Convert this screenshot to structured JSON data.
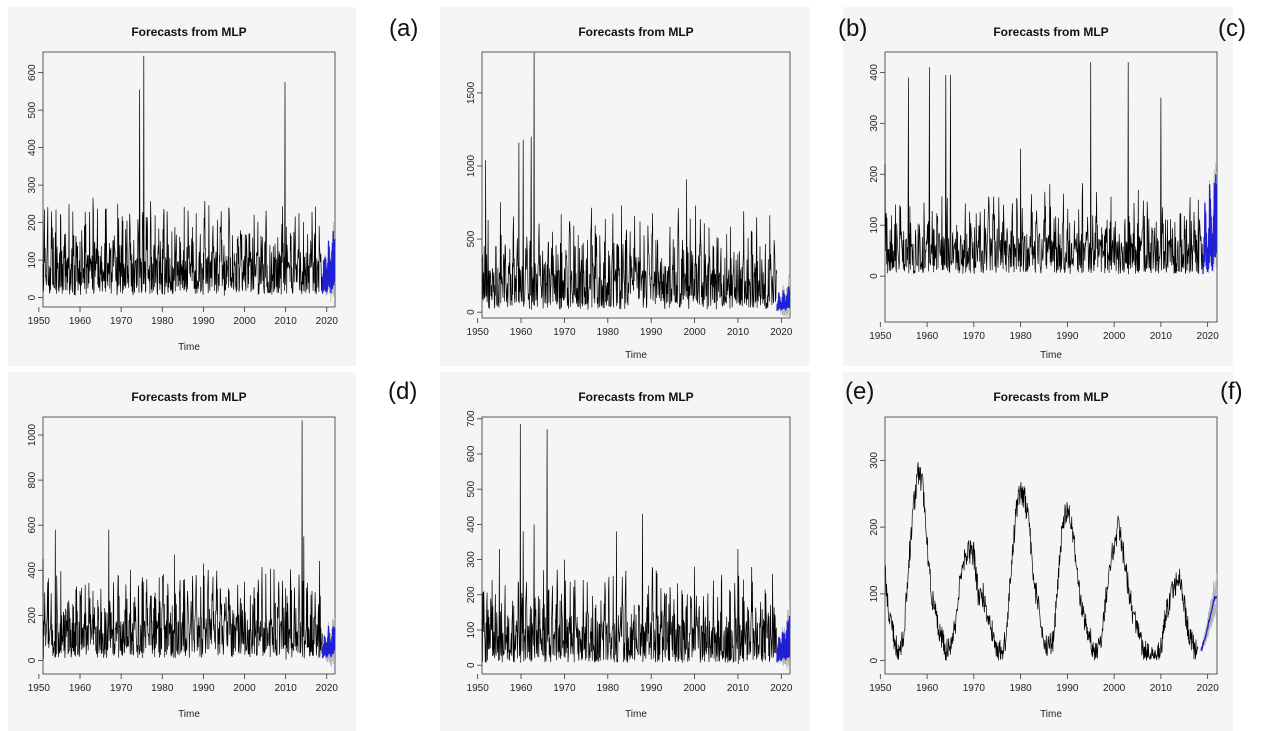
{
  "chart_data": [
    {
      "id": "a",
      "type": "line",
      "title": "Forecasts from MLP",
      "xlabel": "Time",
      "ylabel": "",
      "xlim": [
        1951,
        2022
      ],
      "ylim": [
        -25,
        655
      ],
      "yticks": [
        0,
        100,
        200,
        300,
        400,
        500,
        600
      ],
      "xticks": [
        1950,
        1960,
        1970,
        1980,
        1990,
        2000,
        2010,
        2020
      ],
      "history_range": [
        1951,
        2018.9
      ],
      "forecast_range": [
        2019,
        2021.9
      ],
      "series": [
        {
          "role": "history",
          "x": [
            1951,
            1955,
            1960,
            1965,
            1970,
            1974.5,
            1975.5,
            1980,
            1985,
            1990,
            1995,
            2000,
            2005,
            2009.8,
            2015,
            2018
          ],
          "y": [
            90,
            120,
            150,
            110,
            140,
            555,
            645,
            130,
            100,
            120,
            140,
            110,
            150,
            575,
            120,
            90
          ]
        },
        {
          "role": "forecast",
          "x": [
            2019,
            2019.5,
            2020,
            2020.5,
            2021,
            2021.5
          ],
          "y": [
            60,
            140,
            70,
            170,
            80,
            190
          ]
        }
      ]
    },
    {
      "id": "b",
      "type": "line",
      "title": "Forecasts from MLP",
      "xlabel": "Time",
      "ylabel": "",
      "xlim": [
        1951,
        2022
      ],
      "ylim": [
        -40,
        1780
      ],
      "yticks": [
        0,
        500,
        1000,
        1500
      ],
      "xticks": [
        1950,
        1960,
        1970,
        1980,
        1990,
        2000,
        2010,
        2020
      ],
      "history_range": [
        1951,
        2018.9
      ],
      "forecast_range": [
        2019,
        2021.9
      ],
      "series": [
        {
          "role": "history",
          "x": [
            1951.8,
            1959.5,
            1960.5,
            1962.3,
            1963,
            1970,
            1980,
            1990,
            1998.2,
            1999,
            2010,
            2018
          ],
          "y": [
            1040,
            1160,
            1180,
            1200,
            1775,
            300,
            200,
            250,
            910,
            640,
            400,
            200
          ]
        },
        {
          "role": "forecast",
          "x": [
            2019,
            2019.5,
            2020,
            2020.5,
            2021,
            2021.5
          ],
          "y": [
            50,
            150,
            60,
            170,
            70,
            180
          ]
        }
      ]
    },
    {
      "id": "c",
      "type": "line",
      "title": "Forecasts from MLP",
      "xlabel": "Time",
      "ylabel": "",
      "xlim": [
        1951,
        2022
      ],
      "ylim": [
        -90,
        440
      ],
      "yticks": [
        0,
        100,
        200,
        300,
        400
      ],
      "xticks": [
        1950,
        1960,
        1970,
        1980,
        1990,
        2000,
        2010,
        2020
      ],
      "history_range": [
        1951,
        2018.9
      ],
      "forecast_range": [
        2019,
        2021.9
      ],
      "series": [
        {
          "role": "history",
          "x": [
            1951,
            1956,
            1960.5,
            1964,
            1965,
            1980,
            1995,
            2003,
            2010,
            2018
          ],
          "y": [
            220,
            390,
            410,
            395,
            395,
            250,
            420,
            420,
            350,
            150
          ]
        },
        {
          "role": "forecast",
          "x": [
            2019,
            2019.5,
            2020,
            2020.5,
            2021,
            2021.5
          ],
          "y": [
            20,
            180,
            40,
            210,
            60,
            230
          ]
        }
      ]
    },
    {
      "id": "d",
      "type": "line",
      "title": "Forecasts from MLP",
      "xlabel": "Time",
      "ylabel": "",
      "xlim": [
        1951,
        2022
      ],
      "ylim": [
        -60,
        1080
      ],
      "yticks": [
        0,
        200,
        400,
        600,
        800,
        1000
      ],
      "xticks": [
        1950,
        1960,
        1970,
        1980,
        1990,
        2000,
        2010,
        2020
      ],
      "history_range": [
        1951,
        2018.9
      ],
      "forecast_range": [
        2019,
        2021.9
      ],
      "series": [
        {
          "role": "history",
          "x": [
            1951,
            1954,
            1967,
            1983,
            1990,
            2000,
            2010,
            2014,
            2014.4,
            2018
          ],
          "y": [
            450,
            580,
            580,
            470,
            430,
            350,
            320,
            1065,
            550,
            250
          ]
        },
        {
          "role": "forecast",
          "x": [
            2019,
            2019.5,
            2020,
            2020.5,
            2021,
            2021.5
          ],
          "y": [
            50,
            140,
            70,
            170,
            80,
            190
          ]
        }
      ]
    },
    {
      "id": "e",
      "type": "line",
      "title": "Forecasts from MLP",
      "xlabel": "Time",
      "ylabel": "",
      "xlim": [
        1951,
        2022
      ],
      "ylim": [
        -25,
        705
      ],
      "yticks": [
        0,
        100,
        200,
        300,
        400,
        500,
        600,
        700
      ],
      "xticks": [
        1950,
        1960,
        1970,
        1980,
        1990,
        2000,
        2010,
        2020
      ],
      "history_range": [
        1951,
        2018.9
      ],
      "forecast_range": [
        2019,
        2021.9
      ],
      "series": [
        {
          "role": "history",
          "x": [
            1951,
            1955,
            1959.8,
            1960.5,
            1963,
            1966,
            1970,
            1982,
            1988,
            2000,
            2010,
            2018
          ],
          "y": [
            130,
            330,
            685,
            380,
            400,
            670,
            300,
            380,
            430,
            280,
            330,
            260
          ]
        },
        {
          "role": "forecast",
          "x": [
            2019,
            2019.5,
            2020,
            2020.5,
            2021,
            2021.5
          ],
          "y": [
            40,
            110,
            60,
            130,
            70,
            140
          ]
        }
      ]
    },
    {
      "id": "f",
      "type": "line",
      "title": "Forecasts from MLP",
      "xlabel": "Time",
      "ylabel": "",
      "xlim": [
        1951,
        2022
      ],
      "ylim": [
        -20,
        365
      ],
      "yticks": [
        0,
        100,
        200,
        300
      ],
      "xticks": [
        1950,
        1960,
        1970,
        1980,
        1990,
        2000,
        2010,
        2020
      ],
      "history_range": [
        1951,
        2018
      ],
      "forecast_range": [
        2018.6,
        2021.9
      ],
      "series": [
        {
          "role": "history",
          "x": [
            1951,
            1952,
            1953,
            1954,
            1955,
            1956,
            1957,
            1958,
            1959,
            1960,
            1961,
            1962,
            1963,
            1964,
            1965,
            1966,
            1967,
            1968,
            1969,
            1970,
            1971,
            1972,
            1973,
            1974,
            1975,
            1976,
            1977,
            1978,
            1979,
            1980,
            1981,
            1982,
            1983,
            1984,
            1985,
            1986,
            1987,
            1988,
            1989,
            1990,
            1991,
            1992,
            1993,
            1994,
            1995,
            1996,
            1997,
            1998,
            1999,
            2000,
            2001,
            2002,
            2003,
            2004,
            2005,
            2006,
            2007,
            2008,
            2009,
            2010,
            2011,
            2012,
            2013,
            2014,
            2015,
            2016,
            2017,
            2018
          ],
          "y": [
            130,
            65,
            30,
            6,
            40,
            140,
            225,
            280,
            270,
            175,
            100,
            60,
            40,
            15,
            20,
            50,
            120,
            150,
            165,
            160,
            95,
            100,
            60,
            40,
            18,
            15,
            35,
            140,
            220,
            255,
            240,
            190,
            110,
            75,
            35,
            20,
            30,
            120,
            210,
            230,
            200,
            150,
            80,
            50,
            30,
            10,
            25,
            80,
            140,
            175,
            205,
            160,
            110,
            70,
            45,
            18,
            10,
            5,
            5,
            20,
            70,
            95,
            110,
            130,
            80,
            40,
            20,
            12
          ]
        },
        {
          "role": "forecast",
          "x": [
            2018.6,
            2019.5,
            2020.5,
            2021.5
          ],
          "y": [
            15,
            35,
            65,
            95
          ]
        }
      ]
    }
  ],
  "labels": [
    "(a)",
    "(b)",
    "(c)",
    "(d)",
    "(e)",
    "(f)"
  ]
}
